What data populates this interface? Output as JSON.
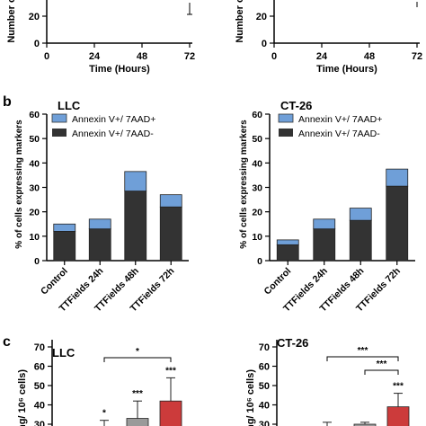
{
  "top_panel": {
    "xlabel": "Time (Hours)",
    "ylabel_fragment": "Number o",
    "ytick_visible": "20",
    "xticks": [
      "0",
      "24",
      "48",
      "72"
    ]
  },
  "panel_b": {
    "label": "b",
    "ylabel": "% of cells expressing markers",
    "legend": [
      "Annexin V+/ 7AAD+",
      "Annexin V+/ 7AAD-"
    ],
    "colors": {
      "upper": "#6f9fd8",
      "lower": "#333333"
    }
  },
  "panel_c": {
    "label": "c",
    "ylabel_fragment": "ng/ 10⁶ cells)",
    "colors": {
      "control": "#9a9a9a",
      "treated": "#cc3b3b"
    }
  },
  "chart_data": [
    {
      "type": "line",
      "panel": "a-left",
      "xlabel": "Time (Hours)",
      "xticks": [
        0,
        24,
        48,
        72
      ],
      "x_range": [
        0,
        72
      ]
    },
    {
      "type": "line",
      "panel": "a-right",
      "xlabel": "Time (Hours)",
      "xticks": [
        0,
        24,
        48,
        72
      ],
      "x_range": [
        0,
        72
      ]
    },
    {
      "type": "bar",
      "stacked": true,
      "title": "LLC",
      "categories": [
        "Control",
        "TTFields 24h",
        "TTFields 48h",
        "TTFields 72h"
      ],
      "series": [
        {
          "name": "Annexin V+/ 7AAD-",
          "values": [
            12,
            13,
            28.5,
            22
          ]
        },
        {
          "name": "Annexin V+/ 7AAD+",
          "values": [
            3,
            4,
            8,
            5
          ]
        }
      ],
      "ylabel": "% of cells expressing markers",
      "ylim": [
        0,
        60
      ],
      "yticks": [
        0,
        10,
        20,
        30,
        40,
        50,
        60
      ]
    },
    {
      "type": "bar",
      "stacked": true,
      "title": "CT-26",
      "categories": [
        "Control",
        "TTFields 24h",
        "TTFields 48h",
        "TTFields 72h"
      ],
      "series": [
        {
          "name": "Annexin V+/ 7AAD-",
          "values": [
            6.5,
            13,
            16.5,
            30.5
          ]
        },
        {
          "name": "Annexin V+/ 7AAD+",
          "values": [
            2,
            4,
            5,
            7
          ]
        }
      ],
      "ylabel": "% of cells expressing markers",
      "ylim": [
        0,
        60
      ],
      "yticks": [
        0,
        10,
        20,
        30,
        40,
        50,
        60
      ]
    },
    {
      "type": "bar",
      "title": "LLC",
      "ylim_visible": [
        30,
        70
      ],
      "yticks": [
        30,
        40,
        50,
        60,
        70
      ],
      "bars": [
        {
          "value": 26,
          "error": 6,
          "sig": "*",
          "color": "control"
        },
        {
          "value": 33,
          "error": 9,
          "sig": "***",
          "color": "control"
        },
        {
          "value": 42,
          "error": 12,
          "sig": "***",
          "color": "treated"
        }
      ],
      "brackets": [
        {
          "from": 0,
          "to": 2,
          "label": "*"
        }
      ]
    },
    {
      "type": "bar",
      "title": "CT-26",
      "ylim_visible": [
        30,
        70
      ],
      "yticks": [
        30,
        40,
        50,
        60,
        70
      ],
      "bars": [
        {
          "value": 28,
          "error": 3,
          "sig": "",
          "color": "control"
        },
        {
          "value": 30,
          "error": 1,
          "sig": "",
          "color": "control"
        },
        {
          "value": 39,
          "error": 7,
          "sig": "***",
          "color": "treated"
        }
      ],
      "brackets": [
        {
          "from": 0,
          "to": 2,
          "label": "***"
        },
        {
          "from": 1,
          "to": 2,
          "label": "***"
        }
      ]
    }
  ]
}
